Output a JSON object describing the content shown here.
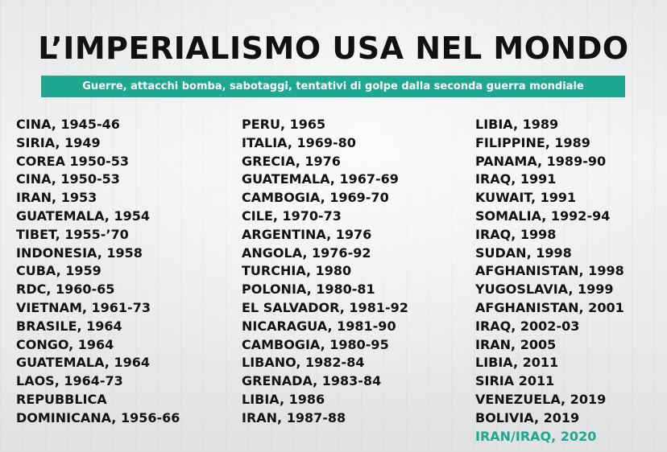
{
  "title": "L’IMPERIALISMO USA NEL MONDO",
  "subtitle": "Guerre, attacchi bomba, sabotaggi, tentativi di golpe dalla seconda guerra mondiale",
  "colors": {
    "accent": "#1ea892",
    "text": "#121212"
  },
  "columns": [
    {
      "items": [
        "CINA, 1945-46",
        "SIRIA, 1949",
        "COREA 1950-53",
        "CINA, 1950-53",
        "IRAN, 1953",
        "GUATEMALA, 1954",
        "TIBET, 1955-’70",
        "INDONESIA, 1958",
        "CUBA, 1959",
        "RDC, 1960-65",
        "VIETNAM, 1961-73",
        "BRASILE, 1964",
        "CONGO, 1964",
        "GUATEMALA, 1964",
        "LAOS, 1964-73",
        "REPUBBLICA",
        "DOMINICANA, 1956-66"
      ]
    },
    {
      "items": [
        "PERU, 1965",
        "ITALIA, 1969-80",
        "GRECIA, 1976",
        "GUATEMALA, 1967-69",
        "CAMBOGIA, 1969-70",
        "CILE, 1970-73",
        "ARGENTINA, 1976",
        "ANGOLA, 1976-92",
        "TURCHIA, 1980",
        "POLONIA, 1980-81",
        "EL SALVADOR, 1981-92",
        "NICARAGUA, 1981-90",
        "CAMBOGIA, 1980-95",
        "LIBANO, 1982-84",
        "GRENADA, 1983-84",
        "LIBIA, 1986",
        "IRAN, 1987-88"
      ]
    },
    {
      "items": [
        "LIBIA, 1989",
        "FILIPPINE, 1989",
        "PANAMA, 1989-90",
        "IRAQ, 1991",
        "KUWAIT, 1991",
        "SOMALIA, 1992-94",
        "IRAQ, 1998",
        "SUDAN, 1998",
        "AFGHANISTAN, 1998",
        "YUGOSLAVIA, 1999",
        "AFGHANISTAN, 2001",
        "IRAQ, 2002-03",
        "IRAN, 2005",
        "LIBIA, 2011",
        "SIRIA 2011",
        "VENEZUELA, 2019",
        "BOLIVIA, 2019",
        "IRAN/IRAQ, 2020"
      ],
      "highlighted_item": "IRAN/IRAQ, 2020"
    }
  ]
}
